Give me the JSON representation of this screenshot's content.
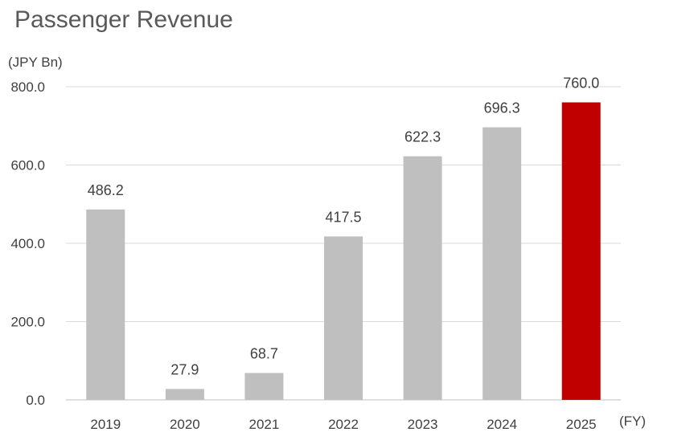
{
  "chart_data": {
    "type": "bar",
    "title": "Passenger Revenue",
    "ylabel": "(JPY Bn)",
    "xlabel": "(FY)",
    "categories": [
      "2019",
      "2020",
      "2021",
      "2022",
      "2023",
      "2024",
      "2025"
    ],
    "values": [
      486.2,
      27.9,
      68.7,
      417.5,
      622.3,
      696.3,
      760.0
    ],
    "value_labels": [
      "486.2",
      "27.9",
      "68.7",
      "417.5",
      "622.3",
      "696.3",
      "760.0"
    ],
    "ylim": [
      0,
      800
    ],
    "yticks": [
      0,
      200,
      400,
      600,
      800
    ],
    "ytick_labels": [
      "0.0",
      "200.0",
      "400.0",
      "600.0",
      "800.0"
    ],
    "grid": true,
    "legend": "none",
    "colors": {
      "default_bar": "#bfbfbf",
      "highlight_bar": "#c00000",
      "gridline": "#d9d9d9",
      "axis": "#bfbfbf"
    },
    "highlight_index": 6
  }
}
